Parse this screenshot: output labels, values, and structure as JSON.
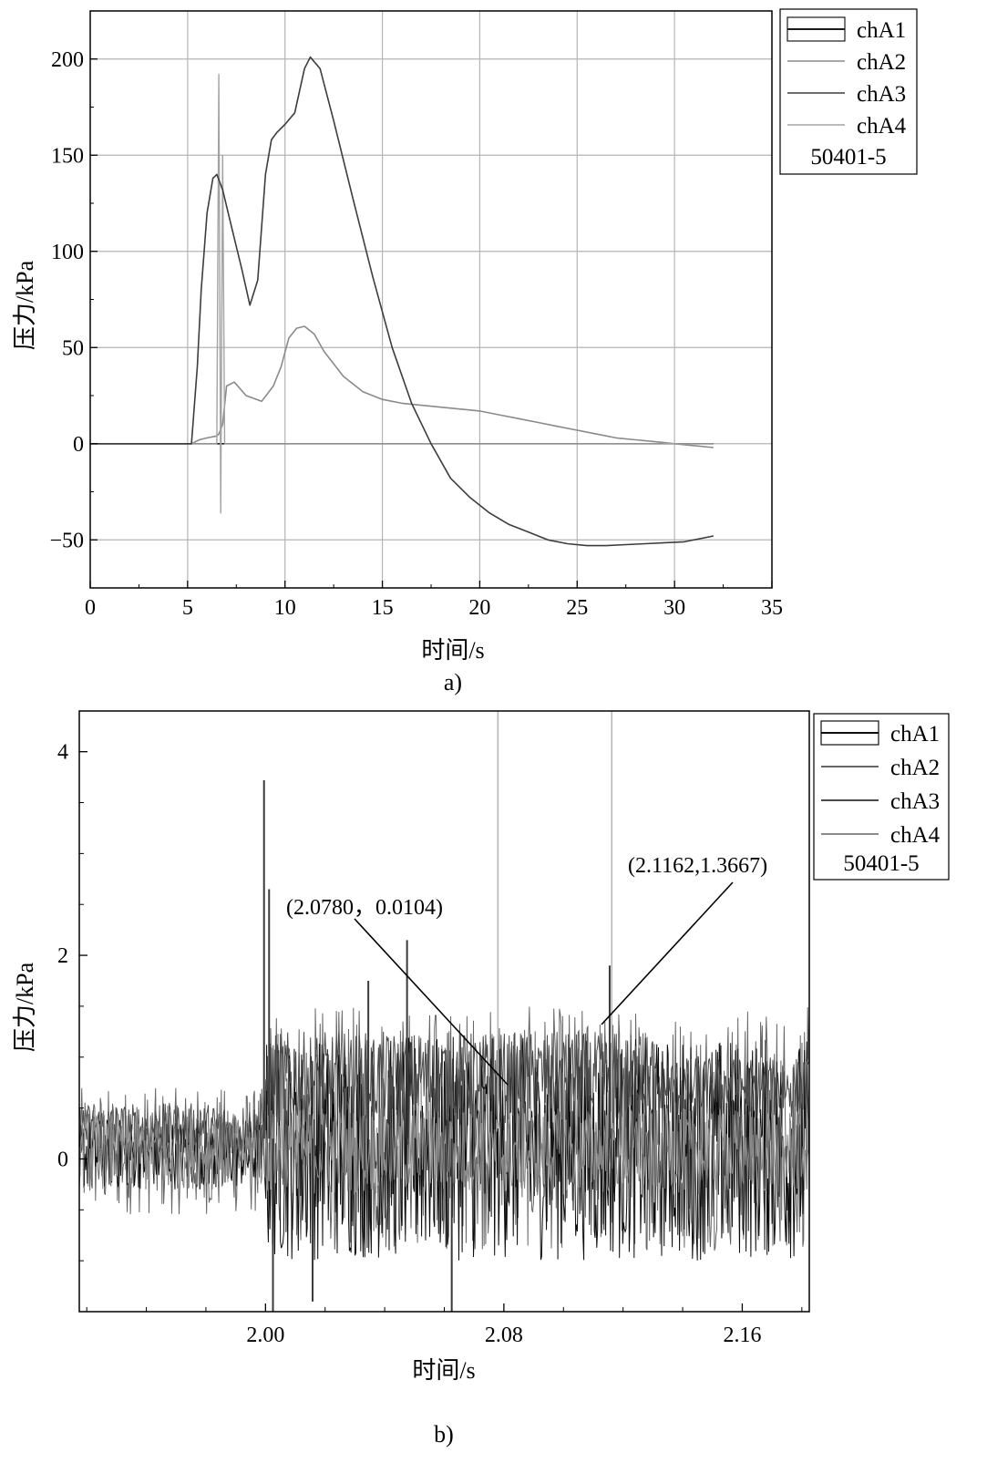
{
  "chart_data": [
    {
      "type": "line",
      "caption": "a)",
      "title": "",
      "xlabel": "时间/s",
      "ylabel": "压力/kPa",
      "xlim": [
        0,
        35
      ],
      "ylim": [
        -75,
        225
      ],
      "x_ticks": [
        0,
        5,
        10,
        15,
        20,
        25,
        30,
        35
      ],
      "x_tick_labels": [
        "0",
        "5",
        "10",
        "15",
        "20",
        "25",
        "30",
        "35"
      ],
      "y_ticks": [
        -50,
        0,
        50,
        100,
        150,
        200
      ],
      "y_tick_labels": [
        "−50",
        "0",
        "50",
        "100",
        "150",
        "200"
      ],
      "grid": true,
      "legend_position": "outside-top-right",
      "legend_note": "50401-5",
      "series": [
        {
          "name": "chA1",
          "color": "#1a1a1a",
          "width": 1.6,
          "x": [
            0,
            2,
            5.2,
            32
          ],
          "y": [
            0,
            0,
            0,
            0
          ]
        },
        {
          "name": "chA2",
          "color": "#8a8a8a",
          "width": 1.6,
          "x": [
            0,
            5.2,
            5.6,
            6.0,
            6.5,
            6.6,
            6.8,
            7.0,
            7.4,
            8.0,
            8.8,
            9.4,
            9.8,
            10.2,
            10.6,
            11.0,
            11.5,
            12.0,
            13.0,
            14.0,
            15.0,
            16.0,
            17.0,
            18.0,
            19.0,
            20.0,
            21.0,
            22.0,
            23.0,
            24.0,
            25.0,
            26.0,
            27.0,
            28.0,
            29.0,
            30.0,
            31.0,
            32.0
          ],
          "y": [
            0,
            0,
            2,
            3,
            4,
            5,
            10,
            30,
            32,
            25,
            22,
            30,
            40,
            55,
            60,
            61,
            57,
            48,
            35,
            27,
            23,
            21,
            20,
            19,
            18,
            17,
            15,
            13,
            11,
            9,
            7,
            5,
            3,
            2,
            1,
            0,
            -1,
            -2
          ]
        },
        {
          "name": "chA3",
          "color": "#3d3d3d",
          "width": 1.6,
          "x": [
            0,
            5.2,
            5.5,
            5.7,
            6.0,
            6.3,
            6.5,
            6.8,
            7.2,
            7.8,
            8.2,
            8.6,
            9.0,
            9.3,
            9.6,
            10.0,
            10.5,
            11.0,
            11.3,
            11.8,
            12.5,
            13.5,
            14.5,
            15.5,
            16.5,
            17.5,
            18.5,
            19.5,
            20.5,
            21.5,
            22.5,
            23.5,
            24.5,
            25.5,
            26.5,
            27.5,
            28.5,
            29.5,
            30.5,
            31.5,
            32.0
          ],
          "y": [
            0,
            0,
            40,
            80,
            120,
            138,
            140,
            132,
            115,
            90,
            72,
            85,
            140,
            158,
            162,
            166,
            172,
            195,
            201,
            195,
            168,
            127,
            87,
            50,
            21,
            0,
            -18,
            -28,
            -36,
            -42,
            -46,
            -50,
            -52,
            -53,
            -53,
            -52.5,
            -52,
            -51.5,
            -51,
            -49,
            -48
          ]
        },
        {
          "name": "chA4",
          "color": "#a3a3a3",
          "width": 1.4,
          "x": [
            0,
            5.8,
            6.2,
            6.5,
            6.6,
            6.7,
            6.8,
            6.9,
            7.0,
            7.6,
            32.0
          ],
          "y": [
            0,
            0,
            0,
            0,
            192,
            -36,
            150,
            0,
            0,
            0,
            0
          ]
        }
      ]
    },
    {
      "type": "line",
      "caption": "b)",
      "title": "",
      "xlabel": "时间/s",
      "ylabel": "压力/kPa",
      "xlim": [
        1.9375,
        2.1825
      ],
      "ylim": [
        -1.5,
        4.4
      ],
      "x_ticks": [
        2.0,
        2.08,
        2.16
      ],
      "x_tick_labels": [
        "2.00",
        "2.08",
        "2.16"
      ],
      "y_ticks": [
        0,
        2,
        4
      ],
      "y_tick_labels": [
        "0",
        "2",
        "4"
      ],
      "grid": false,
      "reference_lines_x": [
        2.078,
        2.1162
      ],
      "legend_position": "outside-top-right",
      "legend_note": "50401-5",
      "series": [
        {
          "name": "chA1",
          "color": "#0d0d0d",
          "band": [
            -0.3,
            0.4
          ],
          "after_burst": [
            -1.0,
            1.2
          ]
        },
        {
          "name": "chA2",
          "color": "#666666",
          "band": [
            -0.55,
            0.7
          ],
          "after_burst": [
            -0.9,
            1.5
          ]
        },
        {
          "name": "chA3",
          "color": "#4a4a4a",
          "band": [
            0.05,
            0.55
          ],
          "after_burst": [
            0.35,
            1.25
          ]
        },
        {
          "name": "chA4",
          "color": "#8a8a8a",
          "band": [
            -0.3,
            0.45
          ],
          "after_burst": [
            -0.35,
            0.5
          ]
        }
      ],
      "spikes": [
        {
          "x": 1.9995,
          "y": 3.72
        },
        {
          "x": 2.0012,
          "y": 2.65
        },
        {
          "x": 2.0025,
          "y": -1.5
        },
        {
          "x": 2.0158,
          "y": -1.4
        },
        {
          "x": 2.0345,
          "y": 1.75
        },
        {
          "x": 2.0475,
          "y": 2.15
        },
        {
          "x": 2.0625,
          "y": -1.5
        },
        {
          "x": 2.1155,
          "y": 1.9
        }
      ],
      "annotations": [
        {
          "label": "(2.0780，0.0104)",
          "point_x": 2.078,
          "point_y": 0.0104
        },
        {
          "label": "(2.1162,1.3667)",
          "point_x": 2.1162,
          "point_y": 1.3667
        }
      ]
    }
  ]
}
